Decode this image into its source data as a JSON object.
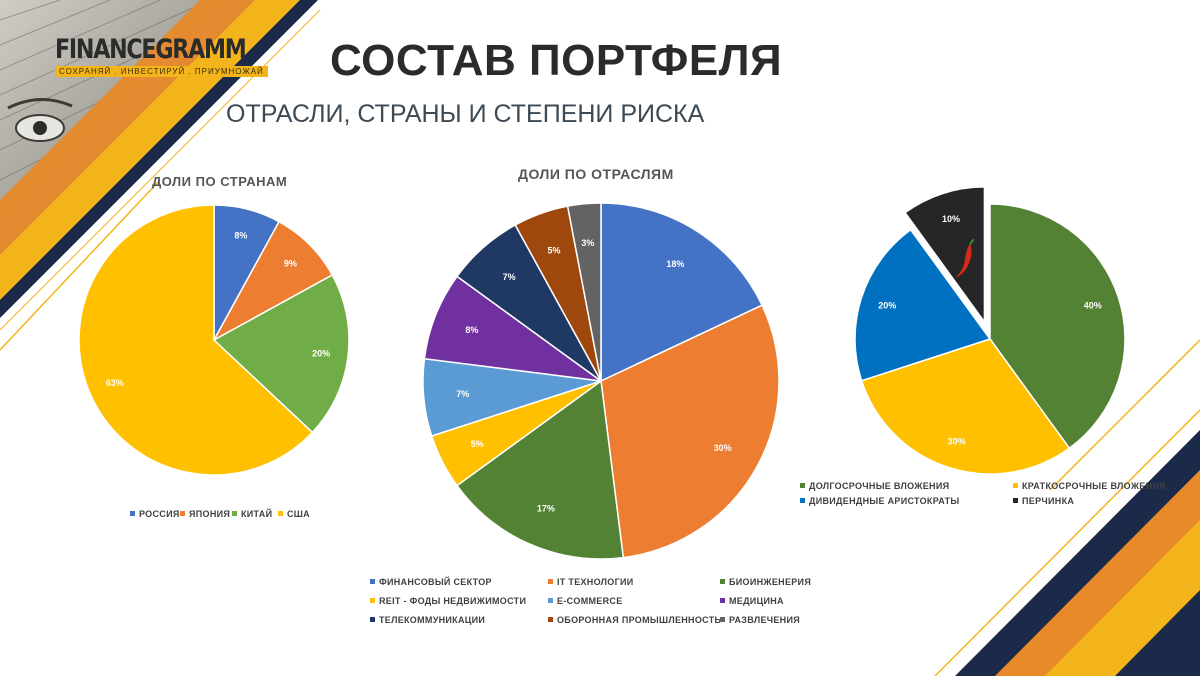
{
  "brand": {
    "name": "FINANCEGRAMM",
    "tagline": "СОХРАНЯЙ . ИНВЕСТИРУЙ . ПРИУМНОЖАЙ"
  },
  "title": "СОСТАВ ПОРТФЕЛЯ",
  "subtitle": "ОТРАСЛИ, СТРАНЫ И СТЕПЕНИ РИСКА",
  "colors": {
    "accent_yellow": "#F4B51C",
    "accent_orange": "#E8892A",
    "navy": "#1C2A4A"
  },
  "chart_data": [
    {
      "type": "pie",
      "title": "ДОЛИ ПО СТРАНАМ",
      "legend_position": "bottom",
      "categories": [
        "РОССИЯ",
        "ЯПОНИЯ",
        "КИТАЙ",
        "США"
      ],
      "values": [
        8,
        9,
        20,
        63
      ],
      "labels": [
        "8%",
        "9%",
        "20%",
        "63%"
      ],
      "colors": [
        "#4472C4",
        "#ED7D31",
        "#70AD47",
        "#FFC000"
      ]
    },
    {
      "type": "pie",
      "title": "ДОЛИ ПО ОТРАСЛЯМ",
      "legend_position": "bottom",
      "categories": [
        "ФИНАНСОВЫЙ СЕКТОР",
        "IT ТЕХНОЛОГИИ",
        "БИОИНЖЕНЕРИЯ",
        "REIT - ФОДЫ НЕДВИЖИМОСТИ",
        "E-COMMERCE",
        "МЕДИЦИНА",
        "ТЕЛЕКОММУНИКАЦИИ",
        "ОБОРОННАЯ ПРОМЫШЛЕННОСТЬ",
        "РАЗВЛЕЧЕНИЯ"
      ],
      "values": [
        18,
        30,
        17,
        5,
        7,
        8,
        7,
        5,
        3
      ],
      "labels": [
        "18%",
        "30%",
        "17%",
        "5%",
        "7%",
        "8%",
        "7%",
        "5%",
        "3%"
      ],
      "colors": [
        "#4472C4",
        "#ED7D31",
        "#548235",
        "#FFC000",
        "#5B9BD5",
        "#7030A0",
        "#203864",
        "#9E480E",
        "#636363"
      ]
    },
    {
      "type": "pie",
      "title": "",
      "legend_position": "bottom",
      "categories": [
        "ДОЛГОСРОЧНЫЕ ВЛОЖЕНИЯ",
        "КРАТКОСРОЧНЫЕ ВЛОЖЕНИЯ",
        "ДИВИДЕНДНЫЕ АРИСТОКРАТЫ",
        "ПЕРЧИНКА"
      ],
      "values": [
        40,
        30,
        20,
        10
      ],
      "labels": [
        "40%",
        "30%",
        "20%",
        "10%"
      ],
      "colors": [
        "#548235",
        "#FFC000",
        "#0070C0",
        "#262626"
      ],
      "exploded": "ПЕРЧИНКА",
      "slice_icon": "chili-pepper-icon"
    }
  ]
}
